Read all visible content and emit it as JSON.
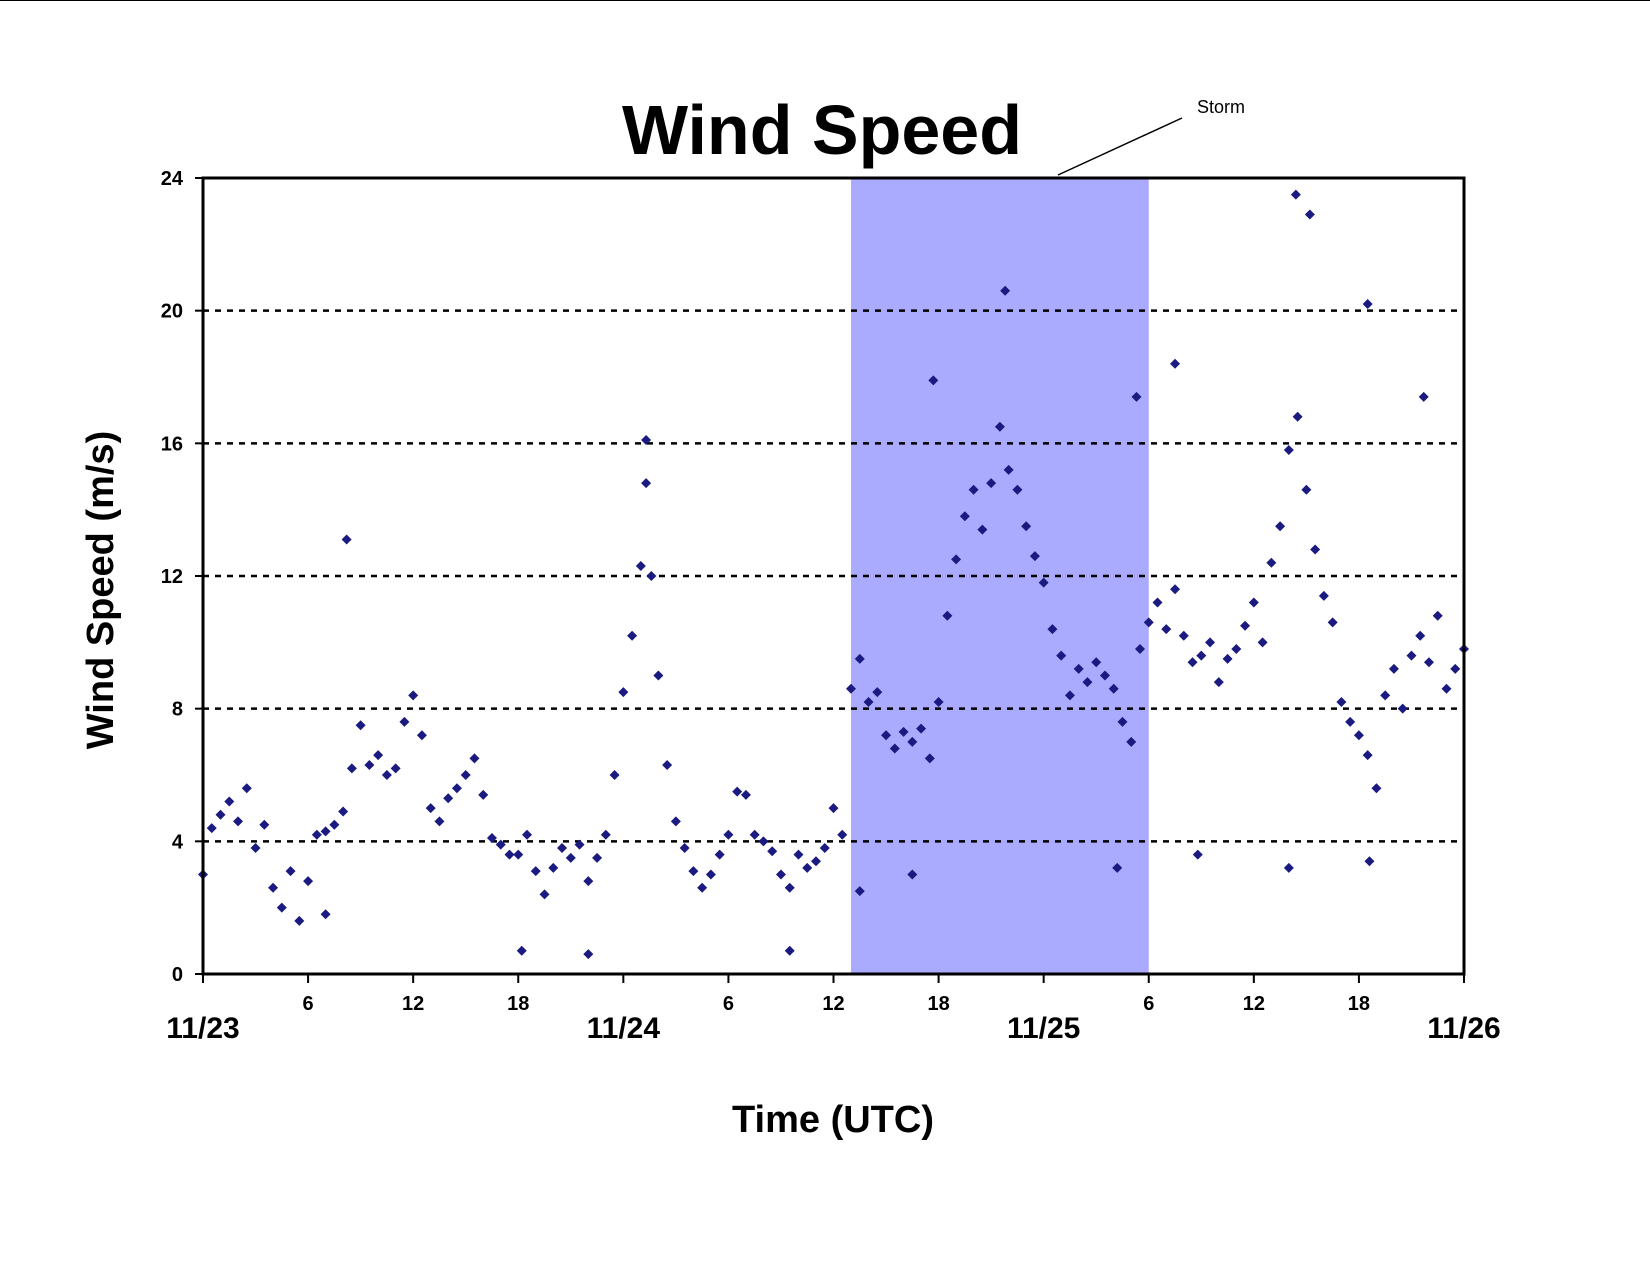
{
  "chart_data": {
    "type": "scatter",
    "title": "Wind Speed",
    "xlabel": "Time (UTC)",
    "ylabel": "Wind Speed (m/s)",
    "x_unit": "hours since 11/23 00:00 UTC",
    "xlim": [
      0,
      72
    ],
    "ylim": [
      0,
      24
    ],
    "yticks": [
      "0",
      "4",
      "8",
      "12",
      "16",
      "20",
      "24"
    ],
    "x_hour_ticks": [
      {
        "x": 6,
        "label": "6"
      },
      {
        "x": 12,
        "label": "12"
      },
      {
        "x": 18,
        "label": "18"
      },
      {
        "x": 30,
        "label": "6"
      },
      {
        "x": 36,
        "label": "12"
      },
      {
        "x": 42,
        "label": "18"
      },
      {
        "x": 54,
        "label": "6"
      },
      {
        "x": 60,
        "label": "12"
      },
      {
        "x": 66,
        "label": "18"
      }
    ],
    "x_date_ticks": [
      {
        "x": 0,
        "label": "11/23"
      },
      {
        "x": 24,
        "label": "11/24"
      },
      {
        "x": 48,
        "label": "11/25"
      },
      {
        "x": 72,
        "label": "11/26"
      }
    ],
    "grid": "horizontal dotted at 4, 8, 12, 16, 20",
    "storm_region": {
      "label": "Storm",
      "x_start": 37,
      "x_end": 54,
      "color": "#aaaaff"
    },
    "marker_color": "#1a1a80",
    "series": [
      {
        "name": "",
        "note": "dense point cloud; representative values as [hour, m/s]",
        "points": [
          [
            0,
            3.0
          ],
          [
            0.5,
            4.4
          ],
          [
            1,
            4.8
          ],
          [
            1.5,
            5.2
          ],
          [
            2,
            4.6
          ],
          [
            2.5,
            5.6
          ],
          [
            3,
            3.8
          ],
          [
            3.5,
            4.5
          ],
          [
            4,
            2.6
          ],
          [
            4.5,
            2.0
          ],
          [
            5,
            3.1
          ],
          [
            5.5,
            1.6
          ],
          [
            6,
            2.8
          ],
          [
            6.5,
            4.2
          ],
          [
            7,
            4.3
          ],
          [
            7.5,
            4.5
          ],
          [
            8,
            4.9
          ],
          [
            8.5,
            6.2
          ],
          [
            9,
            7.5
          ],
          [
            9.5,
            6.3
          ],
          [
            10,
            6.6
          ],
          [
            10.5,
            6.0
          ],
          [
            11,
            6.2
          ],
          [
            11.5,
            7.6
          ],
          [
            12,
            8.4
          ],
          [
            12.5,
            7.2
          ],
          [
            13,
            5.0
          ],
          [
            13.5,
            4.6
          ],
          [
            14,
            5.3
          ],
          [
            14.5,
            5.6
          ],
          [
            15,
            6.0
          ],
          [
            15.5,
            6.5
          ],
          [
            16,
            5.4
          ],
          [
            16.5,
            4.1
          ],
          [
            17,
            3.9
          ],
          [
            17.5,
            3.6
          ],
          [
            18,
            3.6
          ],
          [
            18.5,
            4.2
          ],
          [
            19,
            3.1
          ],
          [
            19.5,
            2.4
          ],
          [
            20,
            3.2
          ],
          [
            20.5,
            3.8
          ],
          [
            21,
            3.5
          ],
          [
            21.5,
            3.9
          ],
          [
            22,
            2.8
          ],
          [
            22.5,
            3.5
          ],
          [
            23,
            4.2
          ],
          [
            23.5,
            6.0
          ],
          [
            24,
            8.5
          ],
          [
            24.5,
            10.2
          ],
          [
            25,
            12.3
          ],
          [
            25.3,
            14.8
          ],
          [
            25.6,
            12.0
          ],
          [
            26,
            9.0
          ],
          [
            26.5,
            6.3
          ],
          [
            27,
            4.6
          ],
          [
            27.5,
            3.8
          ],
          [
            28,
            3.1
          ],
          [
            28.5,
            2.6
          ],
          [
            29,
            3.0
          ],
          [
            29.5,
            3.6
          ],
          [
            30,
            4.2
          ],
          [
            30.5,
            5.5
          ],
          [
            31,
            5.4
          ],
          [
            31.5,
            4.2
          ],
          [
            32,
            4.0
          ],
          [
            32.5,
            3.7
          ],
          [
            33,
            3.0
          ],
          [
            33.5,
            2.6
          ],
          [
            34,
            3.6
          ],
          [
            34.5,
            3.2
          ],
          [
            35,
            3.4
          ],
          [
            35.5,
            3.8
          ],
          [
            36,
            5.0
          ],
          [
            36.5,
            4.2
          ],
          [
            37,
            8.6
          ],
          [
            37.5,
            9.5
          ],
          [
            38,
            8.2
          ],
          [
            38.5,
            8.5
          ],
          [
            39,
            7.2
          ],
          [
            39.5,
            6.8
          ],
          [
            40,
            7.3
          ],
          [
            40.5,
            7.0
          ],
          [
            41,
            7.4
          ],
          [
            41.5,
            6.5
          ],
          [
            42,
            8.2
          ],
          [
            42.5,
            10.8
          ],
          [
            43,
            12.5
          ],
          [
            43.5,
            13.8
          ],
          [
            44,
            14.6
          ],
          [
            44.5,
            13.4
          ],
          [
            45,
            14.8
          ],
          [
            45.5,
            16.5
          ],
          [
            46,
            15.2
          ],
          [
            46.5,
            14.6
          ],
          [
            47,
            13.5
          ],
          [
            47.5,
            12.6
          ],
          [
            48,
            11.8
          ],
          [
            48.5,
            10.4
          ],
          [
            49,
            9.6
          ],
          [
            49.5,
            8.4
          ],
          [
            50,
            9.2
          ],
          [
            50.5,
            8.8
          ],
          [
            51,
            9.4
          ],
          [
            51.5,
            9.0
          ],
          [
            52,
            8.6
          ],
          [
            52.5,
            7.6
          ],
          [
            53,
            7.0
          ],
          [
            53.5,
            9.8
          ],
          [
            54,
            10.6
          ],
          [
            54.5,
            11.2
          ],
          [
            55,
            10.4
          ],
          [
            55.5,
            11.6
          ],
          [
            56,
            10.2
          ],
          [
            56.5,
            9.4
          ],
          [
            57,
            9.6
          ],
          [
            57.5,
            10.0
          ],
          [
            58,
            8.8
          ],
          [
            58.5,
            9.5
          ],
          [
            59,
            9.8
          ],
          [
            59.5,
            10.5
          ],
          [
            60,
            11.2
          ],
          [
            60.5,
            10.0
          ],
          [
            61,
            12.4
          ],
          [
            61.5,
            13.5
          ],
          [
            62,
            15.8
          ],
          [
            62.5,
            16.8
          ],
          [
            63,
            14.6
          ],
          [
            63.5,
            12.8
          ],
          [
            64,
            11.4
          ],
          [
            64.5,
            10.6
          ],
          [
            65,
            8.2
          ],
          [
            65.5,
            7.6
          ],
          [
            66,
            7.2
          ],
          [
            66.5,
            6.6
          ],
          [
            67,
            5.6
          ],
          [
            67.5,
            8.4
          ],
          [
            68,
            9.2
          ],
          [
            68.5,
            8.0
          ],
          [
            69,
            9.6
          ],
          [
            69.5,
            10.2
          ],
          [
            70,
            9.4
          ],
          [
            70.5,
            10.8
          ],
          [
            71,
            8.6
          ],
          [
            71.5,
            9.2
          ],
          [
            72,
            9.8
          ],
          [
            8.2,
            13.1
          ],
          [
            25.3,
            16.1
          ],
          [
            45.8,
            20.6
          ],
          [
            62.4,
            23.5
          ],
          [
            63.2,
            22.9
          ],
          [
            66.5,
            20.2
          ],
          [
            41.7,
            17.9
          ],
          [
            53.3,
            17.4
          ],
          [
            55.5,
            18.4
          ],
          [
            69.7,
            17.4
          ],
          [
            7,
            1.8
          ],
          [
            18.2,
            0.7
          ],
          [
            22,
            0.6
          ],
          [
            33.5,
            0.7
          ],
          [
            40.5,
            3.0
          ],
          [
            52.2,
            3.2
          ],
          [
            62,
            3.2
          ],
          [
            66.6,
            3.4
          ],
          [
            37.5,
            2.5
          ],
          [
            56.8,
            3.6
          ]
        ]
      }
    ]
  }
}
